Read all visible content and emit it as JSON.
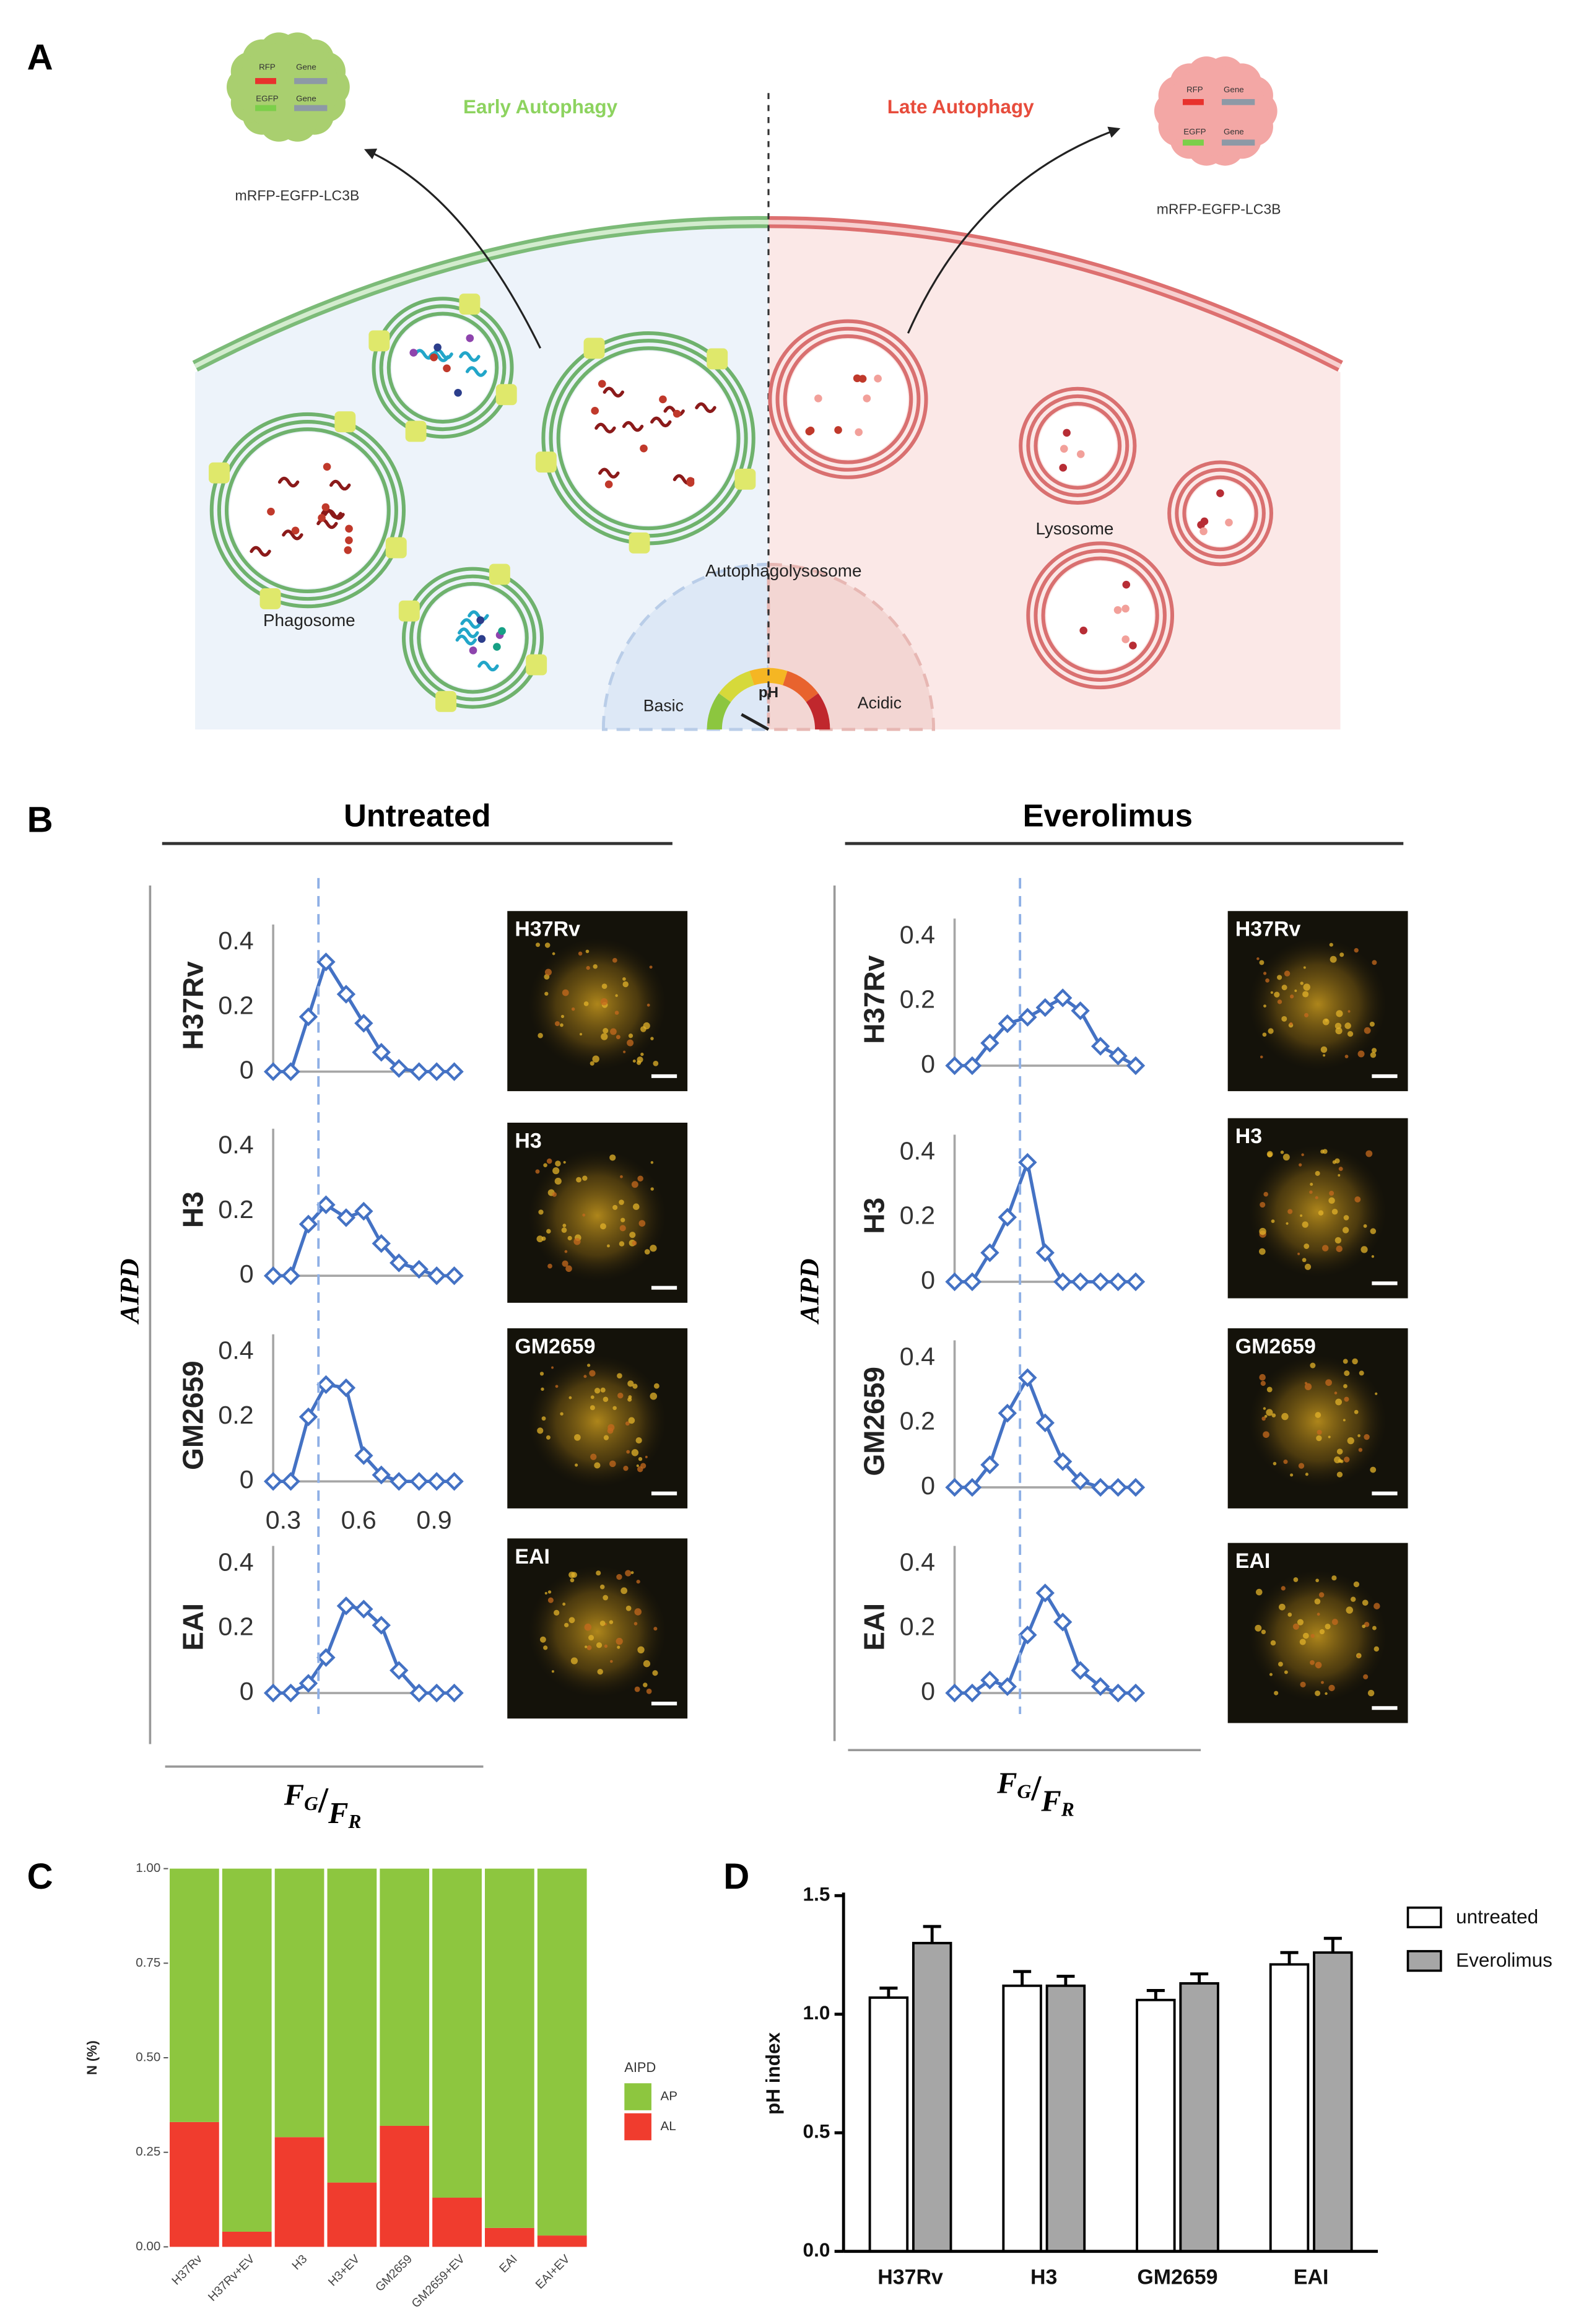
{
  "panel_labels": {
    "a": "A",
    "b": "B",
    "c": "C",
    "d": "D"
  },
  "diagram": {
    "early": "Early Autophagy",
    "late": "Late Autophagy",
    "construct_left": "mRFP-EGFP-LC3B",
    "construct_right": "mRFP-EGFP-LC3B",
    "rfp": "RFP",
    "egfp": "EGFP",
    "gene": "Gene",
    "phagosome": "Phagosome",
    "autophagolysosome": "Autophagolysosome",
    "lysosome": "Lysosome",
    "basic": "Basic",
    "acidic": "Acidic",
    "ph": "pH"
  },
  "panel_b": {
    "ylabel": "AIPD",
    "xlabel_parts": [
      "F",
      "G",
      "/",
      "F",
      "R"
    ],
    "groups": [
      {
        "title": "Untreated",
        "threshold": 0.44
      },
      {
        "title": "Everolimus",
        "threshold": 0.52
      }
    ]
  },
  "chart_data": [
    {
      "type": "line",
      "label": "H37Rv",
      "image_label": "H37Rv",
      "color": "#4472c4",
      "marker": "diamond",
      "x": [
        0.26,
        0.33,
        0.4,
        0.47,
        0.55,
        0.62,
        0.69,
        0.76,
        0.84,
        0.91,
        0.98
      ],
      "values": [
        0,
        0,
        0.17,
        0.34,
        0.24,
        0.15,
        0.06,
        0.01,
        0,
        0,
        0
      ],
      "xlim": [
        0.26,
        1.0
      ],
      "ylim": [
        0,
        0.4
      ],
      "yticks": [
        0,
        0.2,
        0.4
      ]
    },
    {
      "type": "line",
      "label": "H3",
      "image_label": "H3",
      "color": "#4472c4",
      "marker": "diamond",
      "x": [
        0.26,
        0.33,
        0.4,
        0.47,
        0.55,
        0.62,
        0.69,
        0.76,
        0.84,
        0.91,
        0.98
      ],
      "values": [
        0,
        0,
        0.16,
        0.22,
        0.18,
        0.2,
        0.1,
        0.04,
        0.02,
        0,
        0
      ],
      "xlim": [
        0.26,
        1.0
      ],
      "ylim": [
        0,
        0.4
      ],
      "yticks": [
        0,
        0.2,
        0.4
      ]
    },
    {
      "type": "line",
      "label": "GM2659",
      "image_label": "GM2659",
      "color": "#4472c4",
      "marker": "diamond",
      "x": [
        0.26,
        0.33,
        0.4,
        0.47,
        0.55,
        0.62,
        0.69,
        0.76,
        0.84,
        0.91,
        0.98
      ],
      "values": [
        0,
        0,
        0.2,
        0.3,
        0.29,
        0.08,
        0.02,
        0,
        0,
        0,
        0
      ],
      "xlim": [
        0.26,
        1.0
      ],
      "ylim": [
        0,
        0.4
      ],
      "yticks": [
        0,
        0.2,
        0.4
      ],
      "xticks": [
        0.3,
        0.6,
        0.9
      ]
    },
    {
      "type": "line",
      "label": "EAI",
      "image_label": "EAI",
      "color": "#4472c4",
      "marker": "diamond",
      "x": [
        0.26,
        0.33,
        0.4,
        0.47,
        0.55,
        0.62,
        0.69,
        0.76,
        0.84,
        0.91,
        0.98
      ],
      "values": [
        0,
        0,
        0.03,
        0.11,
        0.27,
        0.26,
        0.21,
        0.07,
        0,
        0,
        0
      ],
      "xlim": [
        0.26,
        1.0
      ],
      "ylim": [
        0,
        0.4
      ],
      "yticks": [
        0,
        0.2,
        0.4
      ]
    },
    {
      "type": "line",
      "label": "H37Rv",
      "image_label": "H37Rv",
      "color": "#4472c4",
      "marker": "diamond",
      "x": [
        0.26,
        0.33,
        0.4,
        0.47,
        0.55,
        0.62,
        0.69,
        0.76,
        0.84,
        0.91,
        0.98
      ],
      "values": [
        0,
        0,
        0.07,
        0.13,
        0.15,
        0.18,
        0.21,
        0.17,
        0.06,
        0.03,
        0
      ],
      "xlim": [
        0.26,
        1.0
      ],
      "ylim": [
        0,
        0.4
      ],
      "yticks": [
        0,
        0.2,
        0.4
      ]
    },
    {
      "type": "line",
      "label": "H3",
      "image_label": "H3",
      "color": "#4472c4",
      "marker": "diamond",
      "x": [
        0.26,
        0.33,
        0.4,
        0.47,
        0.55,
        0.62,
        0.69,
        0.76,
        0.84,
        0.91,
        0.98
      ],
      "values": [
        0,
        0,
        0.09,
        0.2,
        0.37,
        0.09,
        0,
        0,
        0,
        0,
        0
      ],
      "xlim": [
        0.26,
        1.0
      ],
      "ylim": [
        0,
        0.4
      ],
      "yticks": [
        0,
        0.2,
        0.4
      ]
    },
    {
      "type": "line",
      "label": "GM2659",
      "image_label": "GM2659",
      "color": "#4472c4",
      "marker": "diamond",
      "x": [
        0.26,
        0.33,
        0.4,
        0.47,
        0.55,
        0.62,
        0.69,
        0.76,
        0.84,
        0.91,
        0.98
      ],
      "values": [
        0,
        0,
        0.07,
        0.23,
        0.34,
        0.2,
        0.08,
        0.02,
        0,
        0,
        0
      ],
      "xlim": [
        0.26,
        1.0
      ],
      "ylim": [
        0,
        0.4
      ],
      "yticks": [
        0,
        0.2,
        0.4
      ]
    },
    {
      "type": "line",
      "label": "EAI",
      "image_label": "EAI",
      "color": "#4472c4",
      "marker": "diamond",
      "x": [
        0.26,
        0.33,
        0.4,
        0.47,
        0.55,
        0.62,
        0.69,
        0.76,
        0.84,
        0.91,
        0.98
      ],
      "values": [
        0,
        0,
        0.04,
        0.02,
        0.18,
        0.31,
        0.22,
        0.07,
        0.02,
        0,
        0
      ],
      "xlim": [
        0.26,
        1.0
      ],
      "ylim": [
        0,
        0.4
      ],
      "yticks": [
        0,
        0.2,
        0.4
      ]
    },
    {
      "type": "stacked_bar",
      "ylabel": "N (%)",
      "categories": [
        "H37Rv",
        "H37Rv+EV",
        "H3",
        "H3+EV",
        "GM2659",
        "GM2659+EV",
        "EAI",
        "EAI+EV"
      ],
      "series": [
        {
          "name": "AP",
          "color": "#8dc63f",
          "values": [
            0.67,
            0.96,
            0.71,
            0.83,
            0.68,
            0.87,
            0.95,
            0.97
          ]
        },
        {
          "name": "AL",
          "color": "#f03c2e",
          "values": [
            0.33,
            0.04,
            0.29,
            0.17,
            0.32,
            0.13,
            0.05,
            0.03
          ]
        }
      ],
      "ylim": [
        0,
        1
      ],
      "yticks": [
        {
          "value": 0,
          "label": "0.00"
        },
        {
          "value": 0.25,
          "label": "0.25"
        },
        {
          "value": 0.5,
          "label": "0.50"
        },
        {
          "value": 0.75,
          "label": "0.75"
        },
        {
          "value": 1,
          "label": "1.00"
        }
      ],
      "legend_title": "AIPD",
      "legend": "right"
    },
    {
      "type": "grouped_bar",
      "ylabel": "pH index",
      "categories": [
        "H37Rv",
        "H3",
        "GM2659",
        "EAI"
      ],
      "series": [
        {
          "name": "untreated",
          "color": "#ffffff",
          "values": [
            1.07,
            1.12,
            1.06,
            1.21
          ],
          "errors": [
            0.04,
            0.06,
            0.04,
            0.05
          ]
        },
        {
          "name": "Everolimus",
          "color": "#a6a6a6",
          "values": [
            1.3,
            1.12,
            1.13,
            1.26
          ],
          "errors": [
            0.07,
            0.04,
            0.04,
            0.06
          ]
        }
      ],
      "ylim": [
        0,
        1.5
      ],
      "yticks": [
        {
          "value": 0,
          "label": "0.0"
        },
        {
          "value": 0.5,
          "label": "0.5"
        },
        {
          "value": 1,
          "label": "1.0"
        },
        {
          "value": 1.5,
          "label": "1.5"
        }
      ],
      "legend": "right"
    }
  ]
}
